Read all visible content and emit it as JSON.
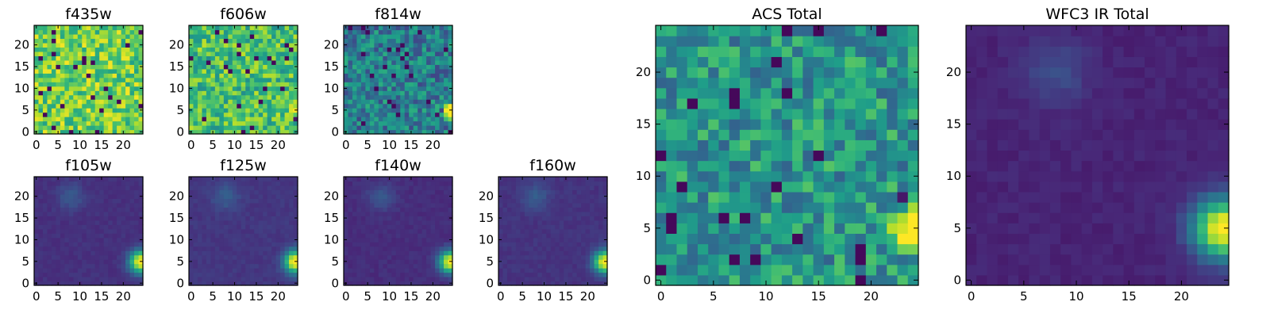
{
  "figure": {
    "title": ""
  },
  "chart_data": [
    {
      "id": "f435w",
      "type": "heatmap",
      "title": "f435w",
      "xlim": [
        0,
        24
      ],
      "ylim": [
        0,
        24
      ],
      "xticks": [
        0,
        5,
        10,
        15,
        20
      ],
      "yticks": [
        0,
        5,
        10,
        15,
        20
      ],
      "colormap": "viridis",
      "pattern": "acs_noise",
      "level": 0.78,
      "source": null
    },
    {
      "id": "f606w",
      "type": "heatmap",
      "title": "f606w",
      "xlim": [
        0,
        24
      ],
      "ylim": [
        0,
        24
      ],
      "xticks": [
        0,
        5,
        10,
        15,
        20
      ],
      "yticks": [
        0,
        5,
        10,
        15,
        20
      ],
      "colormap": "viridis",
      "pattern": "acs_noise",
      "level": 0.7,
      "source": {
        "x": 24,
        "y": 5,
        "sigma": 1.0,
        "peak": 0.3
      }
    },
    {
      "id": "f814w",
      "type": "heatmap",
      "title": "f814w",
      "xlim": [
        0,
        24
      ],
      "ylim": [
        0,
        24
      ],
      "xticks": [
        0,
        5,
        10,
        15,
        20
      ],
      "yticks": [
        0,
        5,
        10,
        15,
        20
      ],
      "colormap": "viridis",
      "pattern": "acs_noise",
      "level": 0.42,
      "source": {
        "x": 24,
        "y": 5,
        "sigma": 1.2,
        "peak": 0.75
      }
    },
    {
      "id": "f105w",
      "type": "heatmap",
      "title": "f105w",
      "xlim": [
        0,
        24
      ],
      "ylim": [
        0,
        24
      ],
      "xticks": [
        0,
        5,
        10,
        15,
        20
      ],
      "yticks": [
        0,
        5,
        10,
        15,
        20
      ],
      "colormap": "viridis",
      "pattern": "ir_smooth",
      "level": 0.14,
      "source": {
        "x": 24,
        "y": 5,
        "sigma": 1.8,
        "peak": 0.9
      }
    },
    {
      "id": "f125w",
      "type": "heatmap",
      "title": "f125w",
      "xlim": [
        0,
        24
      ],
      "ylim": [
        0,
        24
      ],
      "xticks": [
        0,
        5,
        10,
        15,
        20
      ],
      "yticks": [
        0,
        5,
        10,
        15,
        20
      ],
      "colormap": "viridis",
      "pattern": "ir_smooth",
      "level": 0.16,
      "source": {
        "x": 24,
        "y": 5,
        "sigma": 1.8,
        "peak": 0.9
      }
    },
    {
      "id": "f140w",
      "type": "heatmap",
      "title": "f140w",
      "xlim": [
        0,
        24
      ],
      "ylim": [
        0,
        24
      ],
      "xticks": [
        0,
        5,
        10,
        15,
        20
      ],
      "yticks": [
        0,
        5,
        10,
        15,
        20
      ],
      "colormap": "viridis",
      "pattern": "ir_smooth",
      "level": 0.13,
      "source": {
        "x": 24,
        "y": 5,
        "sigma": 1.8,
        "peak": 0.9
      }
    },
    {
      "id": "f160w",
      "type": "heatmap",
      "title": "f160w",
      "xlim": [
        0,
        24
      ],
      "ylim": [
        0,
        24
      ],
      "xticks": [
        0,
        5,
        10,
        15,
        20
      ],
      "yticks": [
        0,
        5,
        10,
        15,
        20
      ],
      "colormap": "viridis",
      "pattern": "ir_smooth",
      "level": 0.15,
      "source": {
        "x": 24,
        "y": 5,
        "sigma": 1.8,
        "peak": 0.9
      }
    },
    {
      "id": "acs_total",
      "type": "heatmap",
      "title": "ACS Total",
      "xlim": [
        0,
        24
      ],
      "ylim": [
        0,
        24
      ],
      "xticks": [
        0,
        5,
        10,
        15,
        20
      ],
      "yticks": [
        0,
        5,
        10,
        15,
        20
      ],
      "colormap": "viridis",
      "pattern": "acs_noise",
      "level": 0.52,
      "source": {
        "x": 24,
        "y": 5,
        "sigma": 1.3,
        "peak": 0.8
      }
    },
    {
      "id": "wfc3_total",
      "type": "heatmap",
      "title": "WFC3 IR Total",
      "xlim": [
        0,
        24
      ],
      "ylim": [
        0,
        24
      ],
      "xticks": [
        0,
        5,
        10,
        15,
        20
      ],
      "yticks": [
        0,
        5,
        10,
        15,
        20
      ],
      "colormap": "viridis",
      "pattern": "ir_smooth",
      "level": 0.1,
      "source": {
        "x": 24,
        "y": 5,
        "sigma": 2.0,
        "peak": 0.95
      }
    }
  ]
}
